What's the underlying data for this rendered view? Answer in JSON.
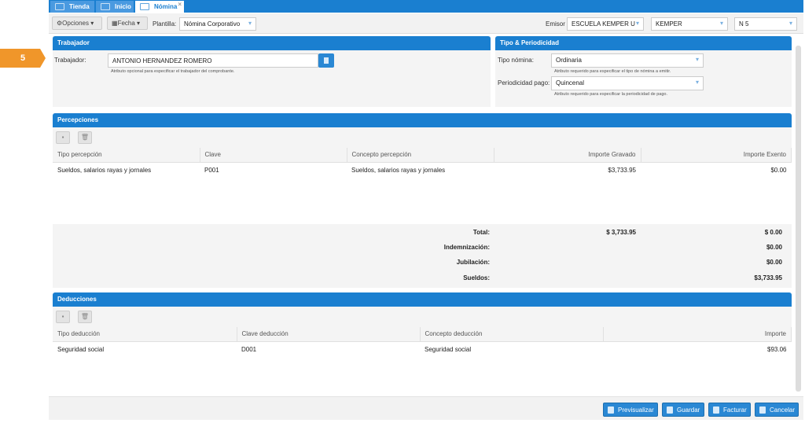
{
  "step_badge": "5",
  "tabs": [
    {
      "label": "Tienda"
    },
    {
      "label": "Inicio"
    },
    {
      "label": "Nómina"
    }
  ],
  "toolbar": {
    "opciones": "Opciones",
    "fecha": "Fecha",
    "plantilla_label": "Plantilla:",
    "plantilla_value": "Nómina Corporativo",
    "emisor_label": "Emisor",
    "emisor_value": "ESCUELA KEMPER U",
    "sucursal_value": "KEMPER",
    "serie_value": "N 5"
  },
  "trabajador": {
    "title": "Trabajador",
    "label": "Trabajador:",
    "value": "ANTONIO HERNANDEZ ROMERO",
    "hint": "Atributo opcional para especificar el trabajador del comprobante."
  },
  "tipo": {
    "title": "Tipo & Periodicidad",
    "tipo_label": "Tipo nómina:",
    "tipo_value": "Ordinaria",
    "tipo_hint": "Atributo requerido para especificar el tipo de nómina a emitir.",
    "periodo_label": "Periodicidad pago:",
    "periodo_value": "Quincenal",
    "periodo_hint": "Atributo requerido para especificar la periodicidad de pago."
  },
  "percepciones": {
    "title": "Percepciones",
    "columns": [
      "Tipo percepción",
      "Clave",
      "Concepto percepción",
      "Importe Gravado",
      "Importe Exento"
    ],
    "rows": [
      [
        "Sueldos, salarios rayas y jornales",
        "P001",
        "Sueldos, salarios rayas y jornales",
        "$3,733.95",
        "$0.00"
      ]
    ],
    "totals": {
      "total_label": "Total:",
      "total_gravado": "$ 3,733.95",
      "total_exento": "$ 0.00",
      "indem_label": "Indemnización:",
      "indem_value": "$0.00",
      "jubil_label": "Jubilación:",
      "jubil_value": "$0.00",
      "sueldos_label": "Sueldos:",
      "sueldos_value": "$3,733.95"
    }
  },
  "deducciones": {
    "title": "Deducciones",
    "columns": [
      "Tipo deducción",
      "Clave deducción",
      "Concepto deducción",
      "Importe"
    ],
    "rows": [
      [
        "Seguridad social",
        "D001",
        "Seguridad social",
        "$93.06"
      ]
    ]
  },
  "footer": {
    "previsualizar": "Previsualizar",
    "guardar": "Guardar",
    "facturar": "Facturar",
    "cancelar": "Cancelar"
  }
}
